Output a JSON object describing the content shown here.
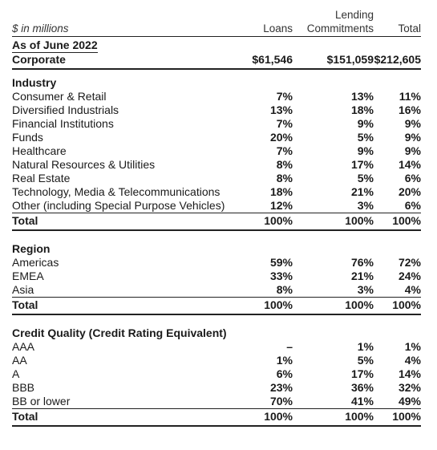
{
  "header": {
    "units": "$ in millions",
    "col_loans": "Loans",
    "col_lending_line1": "Lending",
    "col_lending_line2": "Commitments",
    "col_total": "Total"
  },
  "as_of": "As of June 2022",
  "corporate": {
    "label": "Corporate",
    "loans": "$61,546",
    "lending": "$151,059",
    "total": "$212,605"
  },
  "industry": {
    "heading": "Industry",
    "rows": [
      {
        "label": "Consumer & Retail",
        "loans": "7%",
        "lending": "13%",
        "total": "11%"
      },
      {
        "label": "Diversified Industrials",
        "loans": "13%",
        "lending": "18%",
        "total": "16%"
      },
      {
        "label": "Financial Institutions",
        "loans": "7%",
        "lending": "9%",
        "total": "9%"
      },
      {
        "label": "Funds",
        "loans": "20%",
        "lending": "5%",
        "total": "9%"
      },
      {
        "label": "Healthcare",
        "loans": "7%",
        "lending": "9%",
        "total": "9%"
      },
      {
        "label": "Natural Resources & Utilities",
        "loans": "8%",
        "lending": "17%",
        "total": "14%"
      },
      {
        "label": "Real Estate",
        "loans": "8%",
        "lending": "5%",
        "total": "6%"
      },
      {
        "label": "Technology, Media & Telecommunications",
        "loans": "18%",
        "lending": "21%",
        "total": "20%"
      },
      {
        "label": "Other (including Special Purpose Vehicles)",
        "loans": "12%",
        "lending": "3%",
        "total": "6%"
      }
    ],
    "total": {
      "label": "Total",
      "loans": "100%",
      "lending": "100%",
      "total": "100%"
    }
  },
  "region": {
    "heading": "Region",
    "rows": [
      {
        "label": "Americas",
        "loans": "59%",
        "lending": "76%",
        "total": "72%"
      },
      {
        "label": "EMEA",
        "loans": "33%",
        "lending": "21%",
        "total": "24%"
      },
      {
        "label": "Asia",
        "loans": "8%",
        "lending": "3%",
        "total": "4%"
      }
    ],
    "total": {
      "label": "Total",
      "loans": "100%",
      "lending": "100%",
      "total": "100%"
    }
  },
  "credit_quality": {
    "heading": "Credit Quality (Credit Rating Equivalent)",
    "rows": [
      {
        "label": "AAA",
        "loans": "–",
        "lending": "1%",
        "total": "1%"
      },
      {
        "label": "AA",
        "loans": "1%",
        "lending": "5%",
        "total": "4%"
      },
      {
        "label": "A",
        "loans": "6%",
        "lending": "17%",
        "total": "14%"
      },
      {
        "label": "BBB",
        "loans": "23%",
        "lending": "36%",
        "total": "32%"
      },
      {
        "label": "BB or lower",
        "loans": "70%",
        "lending": "41%",
        "total": "49%"
      }
    ],
    "total": {
      "label": "Total",
      "loans": "100%",
      "lending": "100%",
      "total": "100%"
    }
  }
}
